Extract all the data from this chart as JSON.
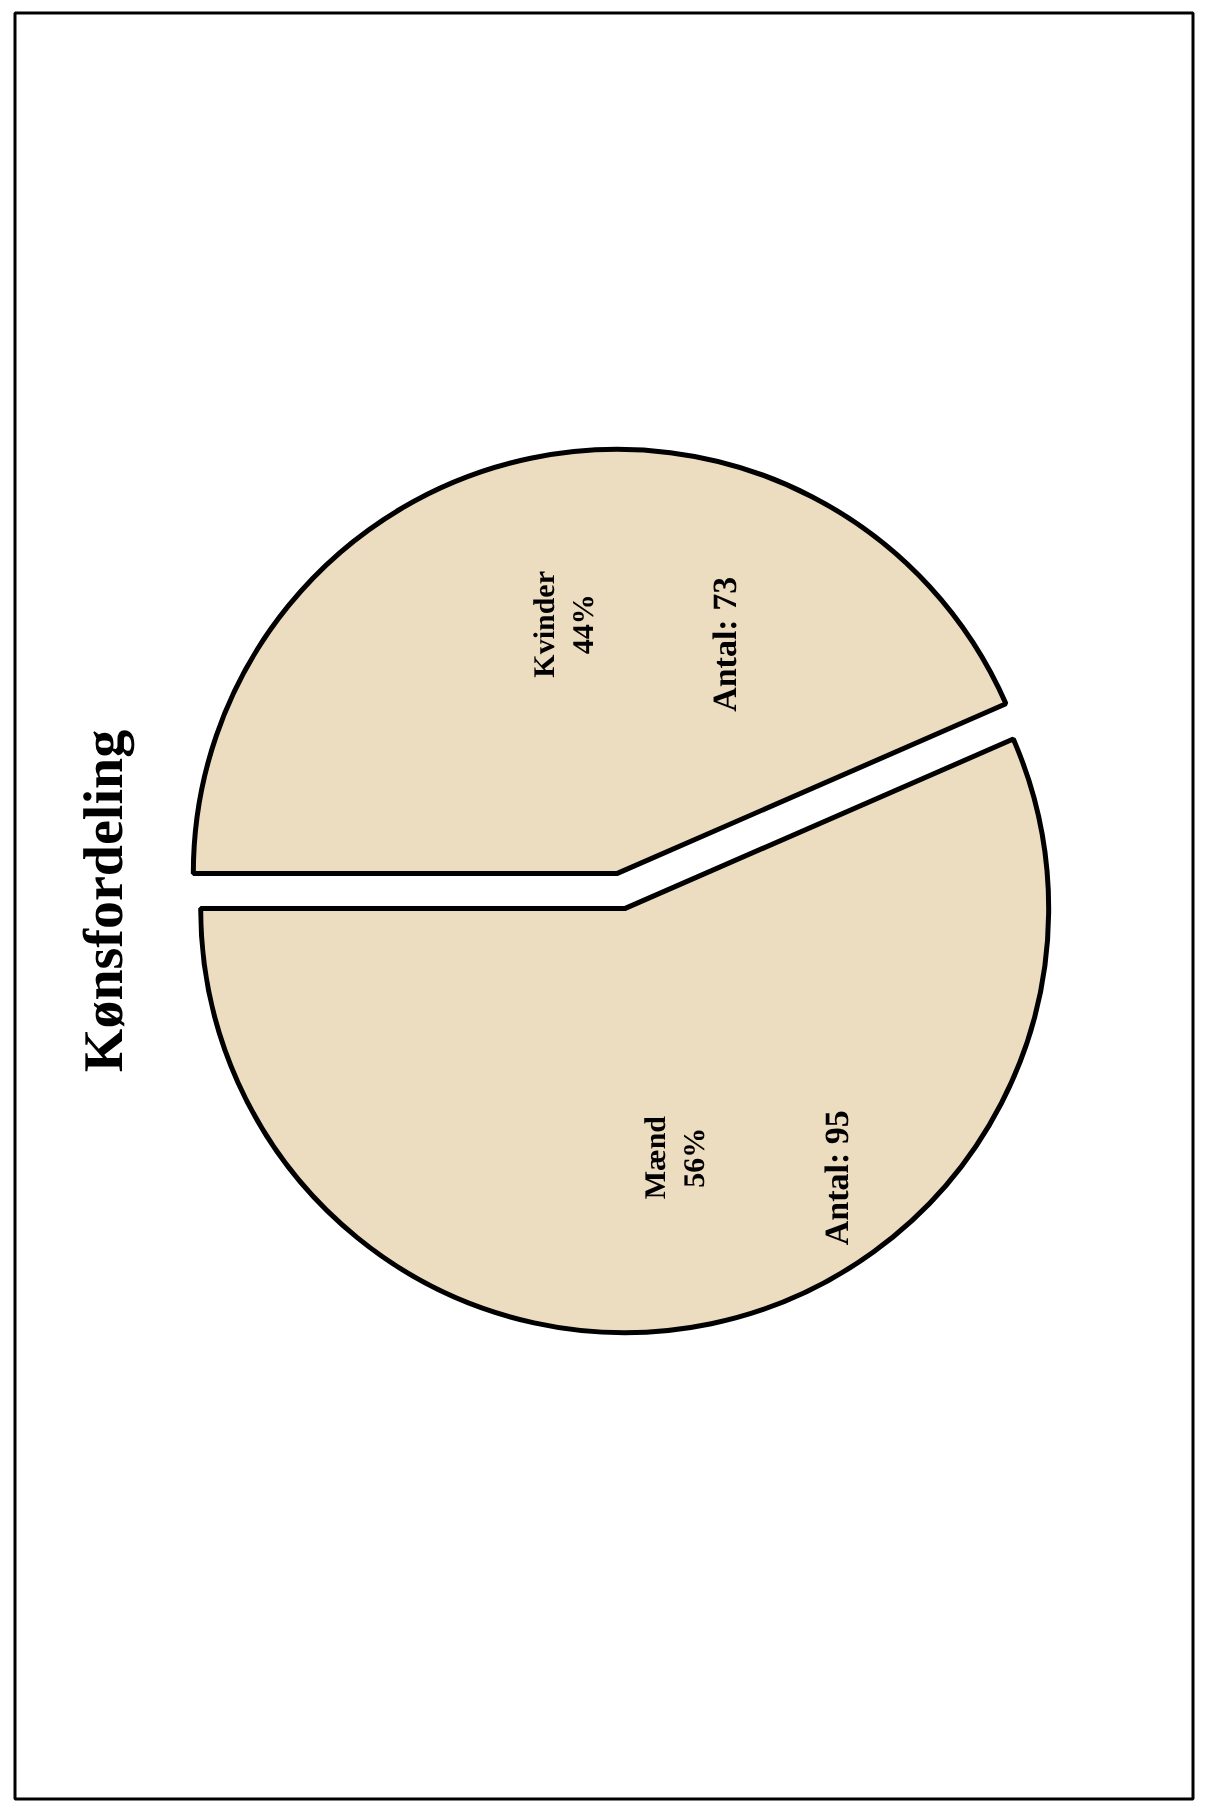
{
  "chart_data": {
    "type": "pie",
    "title": "Kønsfordeling",
    "categories": [
      "Mænd\n56%",
      "Kvinder\n44%"
    ],
    "values": [
      95,
      73
    ],
    "value_labels": [
      "Antal: 95",
      "Antal: 73"
    ],
    "colors": [
      "#ecdcc0",
      "#ecdcc0"
    ]
  }
}
